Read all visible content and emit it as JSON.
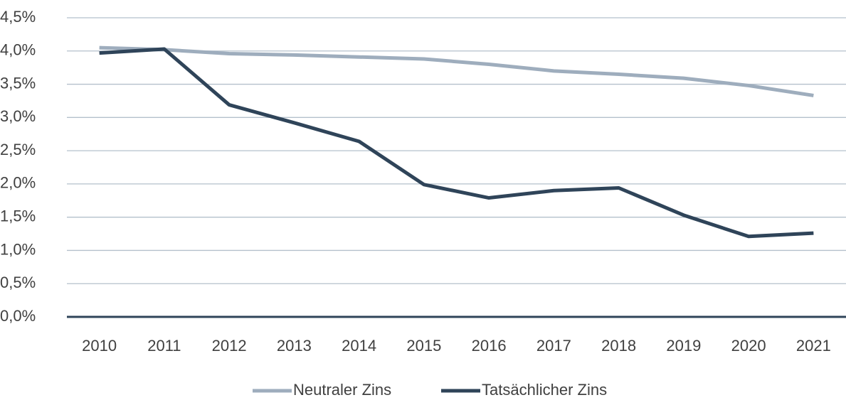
{
  "chart_data": {
    "type": "line",
    "categories": [
      "2010",
      "2011",
      "2012",
      "2013",
      "2014",
      "2015",
      "2016",
      "2017",
      "2018",
      "2019",
      "2020",
      "2021"
    ],
    "series": [
      {
        "name": "Neutraler Zins",
        "color": "#9eadbd",
        "values": [
          4.05,
          4.02,
          3.96,
          3.94,
          3.91,
          3.88,
          3.8,
          3.7,
          3.65,
          3.59,
          3.48,
          3.33
        ]
      },
      {
        "name": "Tatsächlicher Zins",
        "color": "#2f4459",
        "values": [
          3.97,
          4.03,
          3.19,
          2.92,
          2.64,
          1.99,
          1.79,
          1.9,
          1.94,
          1.53,
          1.21,
          1.26
        ]
      }
    ],
    "ylim": [
      0,
      4.5
    ],
    "yticks": [
      {
        "value": 0,
        "label": "0,0%"
      },
      {
        "value": 0.5,
        "label": "0,5%"
      },
      {
        "value": 1,
        "label": "1,0%"
      },
      {
        "value": 1.5,
        "label": "1,5%"
      },
      {
        "value": 2,
        "label": "2,0%"
      },
      {
        "value": 2.5,
        "label": "2,5%"
      },
      {
        "value": 3,
        "label": "3,0%"
      },
      {
        "value": 3.5,
        "label": "3,5%"
      },
      {
        "value": 4,
        "label": "4,0%"
      },
      {
        "value": 4.5,
        "label": "4,5%"
      }
    ],
    "grid": true,
    "legend": "bottom"
  }
}
